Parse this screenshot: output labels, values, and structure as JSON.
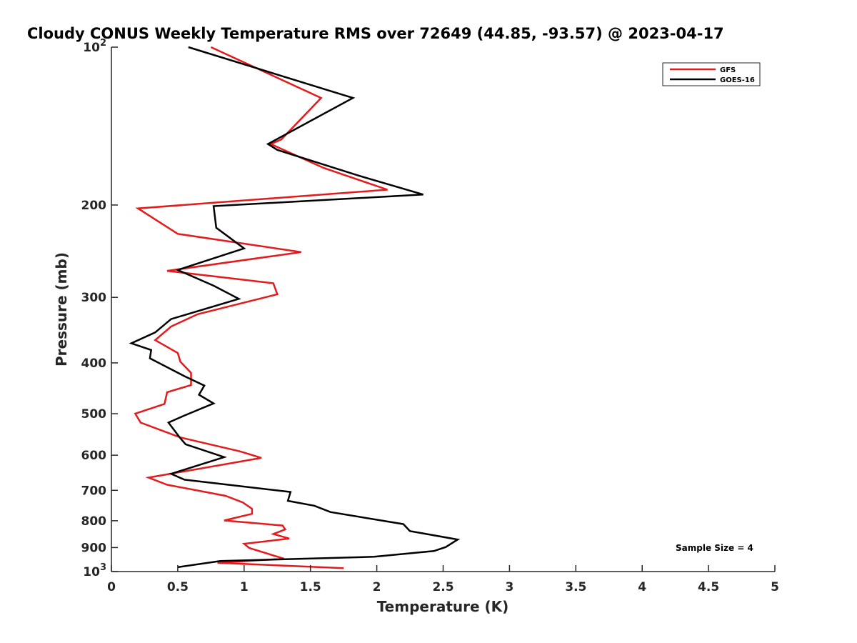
{
  "chart_data": {
    "type": "line",
    "title": "Cloudy CONUS Weekly Temperature RMS over 72649 (44.85, -93.57) @ 2023-04-17",
    "xlabel": "Temperature (K)",
    "ylabel": "Pressure (mb)",
    "xlim": [
      0,
      5
    ],
    "ylim": [
      100,
      1000
    ],
    "y_scale": "log",
    "y_reversed": true,
    "x_ticks": [
      "0",
      "0.5",
      "1",
      "1.5",
      "2",
      "2.5",
      "3",
      "3.5",
      "4",
      "4.5",
      "5"
    ],
    "y_ticks": [
      {
        "base": "10",
        "exp": "2",
        "value": 100
      },
      {
        "label": "200",
        "value": 200
      },
      {
        "label": "300",
        "value": 300
      },
      {
        "label": "400",
        "value": 400
      },
      {
        "label": "500",
        "value": 500
      },
      {
        "label": "600",
        "value": 600
      },
      {
        "label": "700",
        "value": 700
      },
      {
        "label": "800",
        "value": 800
      },
      {
        "label": "900",
        "value": 900
      },
      {
        "base": "10",
        "exp": "3",
        "value": 1000
      }
    ],
    "grid": false,
    "legend_position": "top-right",
    "series": [
      {
        "name": "GFS",
        "color": "#e41a1c",
        "points": [
          [
            0.75,
            100
          ],
          [
            1.58,
            125
          ],
          [
            1.28,
            150
          ],
          [
            1.2,
            153
          ],
          [
            1.6,
            170
          ],
          [
            2.08,
            187
          ],
          [
            0.2,
            203
          ],
          [
            0.5,
            227
          ],
          [
            1.43,
            246
          ],
          [
            0.42,
            267
          ],
          [
            1.22,
            282
          ],
          [
            1.25,
            296
          ],
          [
            0.65,
            323
          ],
          [
            0.45,
            341
          ],
          [
            0.33,
            362
          ],
          [
            0.5,
            383
          ],
          [
            0.52,
            398
          ],
          [
            0.6,
            418
          ],
          [
            0.6,
            441
          ],
          [
            0.42,
            455
          ],
          [
            0.4,
            479
          ],
          [
            0.18,
            500
          ],
          [
            0.22,
            520
          ],
          [
            0.52,
            555
          ],
          [
            0.97,
            590
          ],
          [
            1.13,
            607
          ],
          [
            0.28,
            662
          ],
          [
            0.42,
            683
          ],
          [
            0.86,
            717
          ],
          [
            0.99,
            738
          ],
          [
            1.06,
            759
          ],
          [
            1.06,
            776
          ],
          [
            0.85,
            799
          ],
          [
            1.29,
            817
          ],
          [
            1.31,
            831
          ],
          [
            1.22,
            848
          ],
          [
            1.34,
            865
          ],
          [
            1.0,
            885
          ],
          [
            1.04,
            902
          ],
          [
            1.3,
            945
          ],
          [
            0.8,
            962
          ],
          [
            1.75,
            985
          ]
        ]
      },
      {
        "name": "GOES-16",
        "color": "#000000",
        "points": [
          [
            0.58,
            100
          ],
          [
            1.82,
            125
          ],
          [
            1.18,
            153
          ],
          [
            1.25,
            157
          ],
          [
            1.87,
            176
          ],
          [
            2.35,
            191
          ],
          [
            0.77,
            201
          ],
          [
            0.79,
            221
          ],
          [
            1.0,
            242
          ],
          [
            0.5,
            266
          ],
          [
            0.77,
            285
          ],
          [
            0.96,
            302
          ],
          [
            0.45,
            330
          ],
          [
            0.33,
            350
          ],
          [
            0.15,
            367
          ],
          [
            0.3,
            378
          ],
          [
            0.29,
            392
          ],
          [
            0.55,
            424
          ],
          [
            0.7,
            442
          ],
          [
            0.66,
            460
          ],
          [
            0.77,
            478
          ],
          [
            0.55,
            504
          ],
          [
            0.43,
            520
          ],
          [
            0.52,
            557
          ],
          [
            0.56,
            572
          ],
          [
            0.85,
            605
          ],
          [
            0.45,
            651
          ],
          [
            0.55,
            668
          ],
          [
            1.35,
            705
          ],
          [
            1.33,
            733
          ],
          [
            1.53,
            749
          ],
          [
            1.65,
            770
          ],
          [
            2.2,
            812
          ],
          [
            2.25,
            837
          ],
          [
            2.61,
            869
          ],
          [
            2.52,
            898
          ],
          [
            2.43,
            914
          ],
          [
            1.98,
            937
          ],
          [
            0.82,
            955
          ],
          [
            0.5,
            981
          ]
        ]
      }
    ],
    "annotation": "Sample Size = 4"
  }
}
